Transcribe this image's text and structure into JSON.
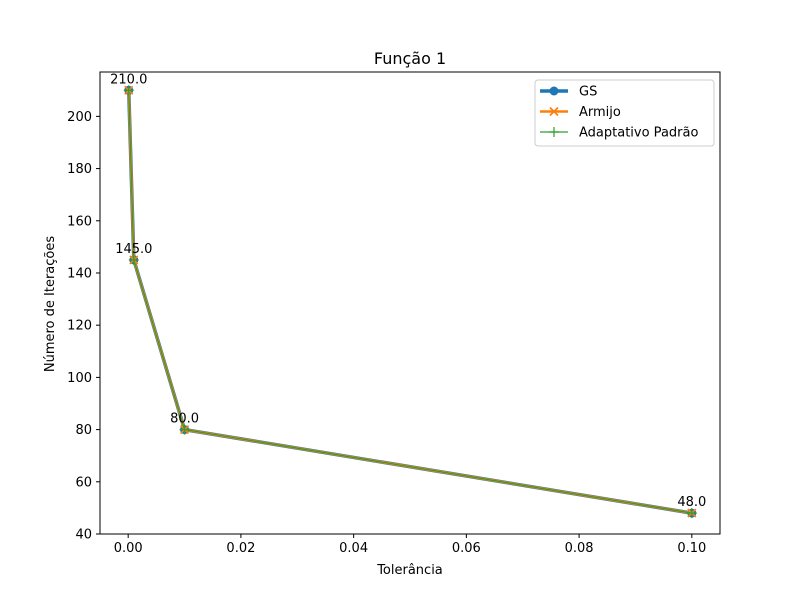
{
  "chart_data": {
    "type": "line",
    "title": "Função 1",
    "xlabel": "Tolerância",
    "ylabel": "Número de Iterações",
    "xlim": [
      -0.005,
      0.105
    ],
    "ylim": [
      40,
      217
    ],
    "x": [
      0.0001,
      0.001,
      0.01,
      0.1
    ],
    "xticks": [
      0.0,
      0.02,
      0.04,
      0.06,
      0.08,
      0.1
    ],
    "xtick_labels": [
      "0.00",
      "0.02",
      "0.04",
      "0.06",
      "0.08",
      "0.10"
    ],
    "yticks": [
      40,
      60,
      80,
      100,
      120,
      140,
      160,
      180,
      200
    ],
    "ytick_labels": [
      "40",
      "60",
      "80",
      "100",
      "120",
      "140",
      "160",
      "180",
      "200"
    ],
    "series": [
      {
        "name": "GS",
        "values": [
          210,
          145,
          80,
          48
        ],
        "color": "#1f77b4",
        "marker": "circle"
      },
      {
        "name": "Armijo",
        "values": [
          210,
          145,
          80,
          48
        ],
        "color": "#ff7f0e",
        "marker": "x"
      },
      {
        "name": "Adaptativo Padrão",
        "values": [
          210,
          145,
          80,
          48
        ],
        "color": "#2ca02c",
        "marker": "plus"
      }
    ],
    "data_labels": [
      "210.0",
      "145.0",
      "80.0",
      "48.0"
    ],
    "legend_position": "top-right",
    "grid": false
  }
}
